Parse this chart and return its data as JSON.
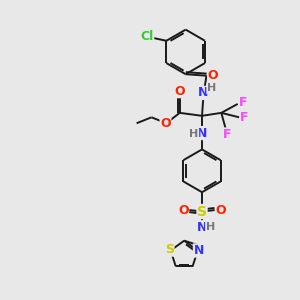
{
  "background_color": "#e8e8e8",
  "bond_color": "#1a1a1a",
  "bond_width": 1.4,
  "colors": {
    "Cl": "#33cc33",
    "F": "#ff44ff",
    "O": "#ff2200",
    "N": "#3333ff",
    "S": "#cccc00",
    "H": "#777777",
    "C": "#1a1a1a"
  }
}
